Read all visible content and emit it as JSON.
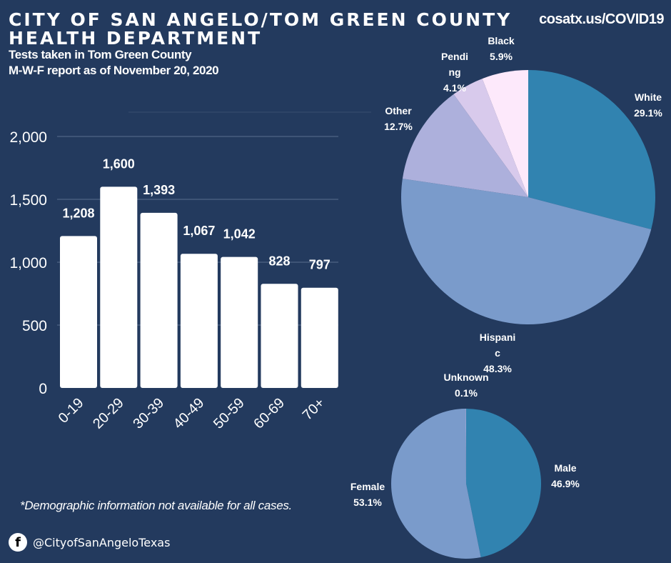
{
  "header": {
    "title_line1": "CITY OF SAN ANGELO/TOM GREEN COUNTY",
    "title_line2": "HEALTH DEPARTMENT",
    "subtitle1": "Tests taken in Tom Green County",
    "subtitle2": "M-W-F report as of November 20, 2020",
    "url": "cosatx.us/COVID19"
  },
  "footer": {
    "note": "*Demographic information not available for all cases.",
    "social_handle": "@CityofSanAngeloTexas",
    "social_icon": "facebook-icon"
  },
  "chart_data": [
    {
      "type": "bar",
      "categories": [
        "0-19",
        "20-29",
        "30-39",
        "40-49",
        "50-59",
        "60-69",
        "70+"
      ],
      "values": [
        1208,
        1600,
        1393,
        1067,
        1042,
        828,
        797
      ],
      "value_labels": [
        "1,208",
        "1,600",
        "1,393",
        "1,067",
        "1,042",
        "828",
        "797"
      ],
      "ylim": [
        0,
        2000
      ],
      "yticks": [
        0,
        500,
        1000,
        1500,
        2000
      ],
      "ytick_labels": [
        "0",
        "500",
        "1,000",
        "1,500",
        "2,000"
      ],
      "grid": true,
      "bar_color": "#ffffff"
    },
    {
      "type": "pie",
      "slices": [
        {
          "label": "White",
          "value": 29.1,
          "text": "29.1%",
          "color": "#3183b0"
        },
        {
          "label": "Hispanic",
          "value": 48.3,
          "text": "48.3%",
          "color": "#7a9bcb"
        },
        {
          "label": "Other",
          "value": 12.7,
          "text": "12.7%",
          "color": "#adb0dc"
        },
        {
          "label": "Pending",
          "value": 4.1,
          "text": "4.1%",
          "color": "#d8caec"
        },
        {
          "label": "Black",
          "value": 5.9,
          "text": "5.9%",
          "color": "#fde9fb"
        }
      ]
    },
    {
      "type": "pie",
      "slices": [
        {
          "label": "Male",
          "value": 46.9,
          "text": "46.9%",
          "color": "#3183b0"
        },
        {
          "label": "Female",
          "value": 53.1,
          "text": "53.1%",
          "color": "#7a9bcb"
        },
        {
          "label": "Unknown",
          "value": 0.1,
          "text": "0.1%",
          "color": "#adb0dc"
        }
      ]
    }
  ]
}
